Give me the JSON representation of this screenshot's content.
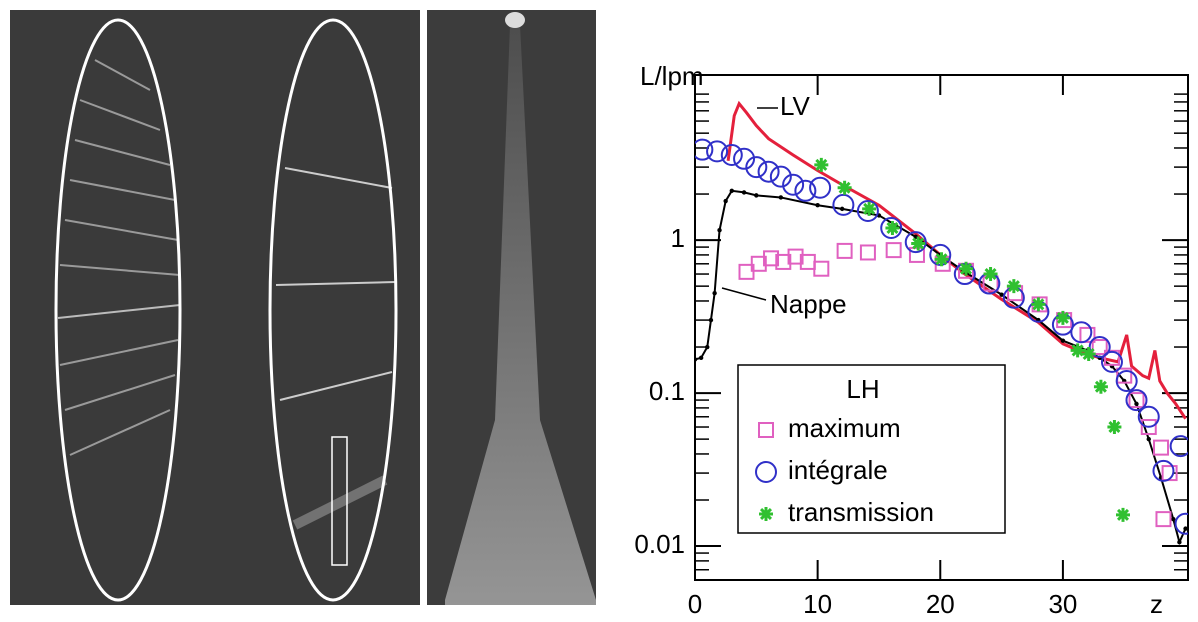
{
  "chart_data": {
    "type": "scatter",
    "y_label": "L/lpm",
    "x_label": "z",
    "xlim": [
      0,
      40.2
    ],
    "xticks": [
      0,
      10,
      20,
      30
    ],
    "ylim": [
      0.006,
      12
    ],
    "yticks": [
      0.01,
      0.1,
      1
    ],
    "log_y": true,
    "legend_title": "LH",
    "legend": "lower left",
    "lines": [
      {
        "name": "LV",
        "color": "#e4203c",
        "x": [
          2.7,
          3.2,
          3.6,
          4.2,
          5,
          6,
          8,
          10,
          12,
          15,
          18,
          20,
          22,
          25,
          28,
          30,
          32,
          33,
          34.5,
          35.2,
          35.6,
          36.5,
          37,
          37.5,
          37.9,
          38.5,
          39.2,
          40
        ],
        "values": [
          3.3,
          6.5,
          7.8,
          6.8,
          5.6,
          4.6,
          3.6,
          2.85,
          2.3,
          1.69,
          1.1,
          0.8,
          0.6,
          0.41,
          0.29,
          0.21,
          0.18,
          0.17,
          0.16,
          0.24,
          0.15,
          0.13,
          0.125,
          0.19,
          0.12,
          0.1,
          0.085,
          0.068
        ]
      },
      {
        "name": "Nappe",
        "color": "#000000",
        "x": [
          0,
          0.5,
          1,
          1.3,
          1.6,
          2,
          2.5,
          3,
          4,
          5,
          7,
          10,
          12,
          15,
          18,
          20,
          22,
          25,
          28,
          30,
          32,
          33,
          34,
          35,
          36,
          37,
          38,
          39,
          39.5,
          40
        ],
        "values": [
          0.166,
          0.17,
          0.2,
          0.3,
          0.45,
          1.16,
          1.8,
          2.1,
          2.05,
          1.96,
          1.9,
          1.69,
          1.6,
          1.45,
          1.05,
          0.8,
          0.62,
          0.44,
          0.3,
          0.22,
          0.19,
          0.17,
          0.15,
          0.12,
          0.085,
          0.05,
          0.028,
          0.015,
          0.0106,
          0.013
        ]
      }
    ],
    "series": [
      {
        "name": "maximum",
        "color": "#e060c0",
        "marker": "square",
        "x": [
          4.2,
          5.2,
          6.2,
          7.2,
          8.2,
          9.2,
          10.3,
          12.2,
          14.1,
          16.2,
          18.1,
          20.2,
          22.1,
          24.1,
          26.1,
          28.1,
          30.1,
          32,
          33,
          34,
          35,
          36,
          37,
          38,
          38.7,
          38.2
        ],
        "values": [
          0.62,
          0.7,
          0.76,
          0.72,
          0.78,
          0.72,
          0.65,
          0.85,
          0.83,
          0.86,
          0.8,
          0.7,
          0.63,
          0.52,
          0.45,
          0.38,
          0.3,
          0.24,
          0.2,
          0.17,
          0.13,
          0.09,
          0.06,
          0.044,
          0.03,
          0.015
        ]
      },
      {
        "name": "intégrale",
        "color": "#3030c8",
        "marker": "circle",
        "x": [
          0.6,
          1.8,
          3,
          4,
          5,
          6,
          7,
          8,
          9,
          10.2,
          12.1,
          14.1,
          16,
          18,
          20,
          22,
          24,
          26,
          28,
          30,
          31.5,
          33,
          34,
          35.2,
          36,
          37,
          38.2,
          39.6,
          40
        ],
        "values": [
          3.9,
          3.8,
          3.6,
          3.4,
          3.0,
          2.8,
          2.6,
          2.3,
          2.1,
          2.2,
          1.7,
          1.55,
          1.2,
          0.97,
          0.8,
          0.6,
          0.52,
          0.42,
          0.34,
          0.28,
          0.25,
          0.2,
          0.16,
          0.12,
          0.09,
          0.07,
          0.031,
          0.045,
          0.014
        ]
      },
      {
        "name": "transmission",
        "color": "#30c030",
        "marker": "star",
        "x": [
          10.3,
          12.2,
          14.2,
          16.1,
          18.2,
          20.1,
          22.1,
          24.1,
          26,
          28,
          30,
          31.2,
          32.1,
          33.1,
          34.2,
          34.9
        ],
        "values": [
          3.1,
          2.2,
          1.6,
          1.2,
          0.95,
          0.75,
          0.65,
          0.6,
          0.5,
          0.38,
          0.31,
          0.19,
          0.18,
          0.11,
          0.06,
          0.016
        ]
      }
    ]
  }
}
